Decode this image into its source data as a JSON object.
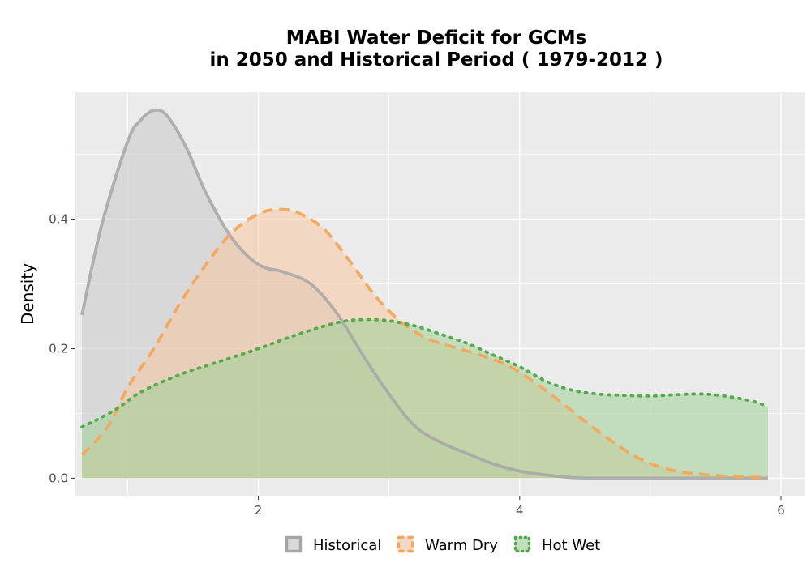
{
  "chart_data": {
    "type": "area",
    "title_line1": "MABI  Water Deficit for GCMs",
    "title_line2": "in 2050 and Historical Period ( 1979-2012 )",
    "xlabel": "",
    "ylabel": "Density",
    "xlim": [
      0.6,
      6.18
    ],
    "ylim": [
      -0.027,
      0.597
    ],
    "x_ticks": [
      2,
      4,
      6
    ],
    "x_tick_labels": [
      "2",
      "4",
      "6"
    ],
    "y_ticks": [
      0.0,
      0.2,
      0.4
    ],
    "y_tick_labels": [
      "0.0",
      "0.2",
      "0.4"
    ],
    "grid": true,
    "legend_position": "bottom",
    "series": [
      {
        "name": "Historical",
        "color": "#a6a6a6",
        "fill": "#c8c8c8",
        "line_style": "solid",
        "x": [
          0.65,
          0.8,
          1.0,
          1.1,
          1.2,
          1.3,
          1.45,
          1.6,
          1.8,
          2.0,
          2.2,
          2.4,
          2.6,
          2.8,
          3.0,
          3.2,
          3.4,
          3.6,
          3.8,
          4.0,
          4.2,
          4.4,
          4.6,
          5.0,
          5.5,
          5.9
        ],
        "y": [
          0.252,
          0.39,
          0.52,
          0.553,
          0.568,
          0.56,
          0.51,
          0.44,
          0.37,
          0.33,
          0.318,
          0.3,
          0.255,
          0.19,
          0.13,
          0.08,
          0.055,
          0.038,
          0.022,
          0.011,
          0.005,
          0.001,
          0.0,
          0.0,
          0.0,
          0.0
        ]
      },
      {
        "name": "Warm Dry",
        "color": "#f5a65b",
        "fill": "#f7c9a0",
        "line_style": "dashed",
        "x": [
          0.65,
          0.85,
          1.0,
          1.2,
          1.4,
          1.6,
          1.8,
          2.0,
          2.15,
          2.3,
          2.5,
          2.7,
          2.9,
          3.1,
          3.3,
          3.5,
          3.7,
          3.9,
          4.1,
          4.3,
          4.5,
          4.7,
          4.9,
          5.1,
          5.3,
          5.6,
          5.9
        ],
        "y": [
          0.036,
          0.08,
          0.14,
          0.2,
          0.27,
          0.33,
          0.38,
          0.408,
          0.415,
          0.41,
          0.385,
          0.335,
          0.28,
          0.24,
          0.215,
          0.202,
          0.19,
          0.175,
          0.15,
          0.12,
          0.088,
          0.058,
          0.032,
          0.016,
          0.008,
          0.003,
          0.001
        ]
      },
      {
        "name": "Hot Wet",
        "color": "#4ea843",
        "fill": "#9fd197",
        "line_style": "dotted",
        "x": [
          0.65,
          0.9,
          1.1,
          1.4,
          1.7,
          2.0,
          2.3,
          2.6,
          2.8,
          3.0,
          3.2,
          3.4,
          3.6,
          3.8,
          4.0,
          4.2,
          4.4,
          4.6,
          4.8,
          5.0,
          5.2,
          5.4,
          5.6,
          5.8,
          5.9
        ],
        "y": [
          0.079,
          0.105,
          0.133,
          0.16,
          0.18,
          0.2,
          0.222,
          0.24,
          0.245,
          0.243,
          0.235,
          0.222,
          0.208,
          0.19,
          0.172,
          0.15,
          0.136,
          0.13,
          0.128,
          0.127,
          0.129,
          0.13,
          0.126,
          0.118,
          0.11
        ]
      }
    ]
  }
}
